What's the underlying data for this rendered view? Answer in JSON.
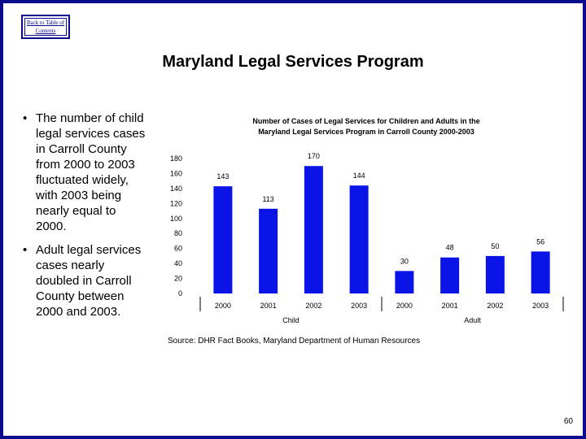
{
  "nav": {
    "back_link": "Back to Table of Contents"
  },
  "page": {
    "title": "Maryland Legal Services Program",
    "page_number": "60"
  },
  "bullets": [
    "The number of child legal services cases in Carroll County from 2000 to 2003 fluctuated widely, with 2003 being nearly equal to 2000.",
    "Adult legal services cases nearly doubled in Carroll County between 2000 and 2003."
  ],
  "bullet_symbol": "•",
  "chart_data": {
    "type": "bar",
    "title_line1": "Number of Cases of Legal Services for Children and Adults in the",
    "title_line2": "Maryland Legal Services Program in Carroll County 2000-2003",
    "categories": [
      "2000",
      "2001",
      "2002",
      "2003",
      "2000",
      "2001",
      "2002",
      "2003"
    ],
    "groups": [
      "Child",
      "Adult"
    ],
    "group_of": [
      0,
      0,
      0,
      0,
      1,
      1,
      1,
      1
    ],
    "values": [
      143,
      113,
      170,
      144,
      30,
      48,
      50,
      56
    ],
    "ylim": [
      0,
      180
    ],
    "yticks": [
      "0",
      "20",
      "40",
      "60",
      "80",
      "100",
      "120",
      "140",
      "160",
      "180"
    ],
    "bar_color": "#0a14e6",
    "grid": false
  },
  "source": "Source: DHR Fact Books, Maryland Department of Human Resources"
}
